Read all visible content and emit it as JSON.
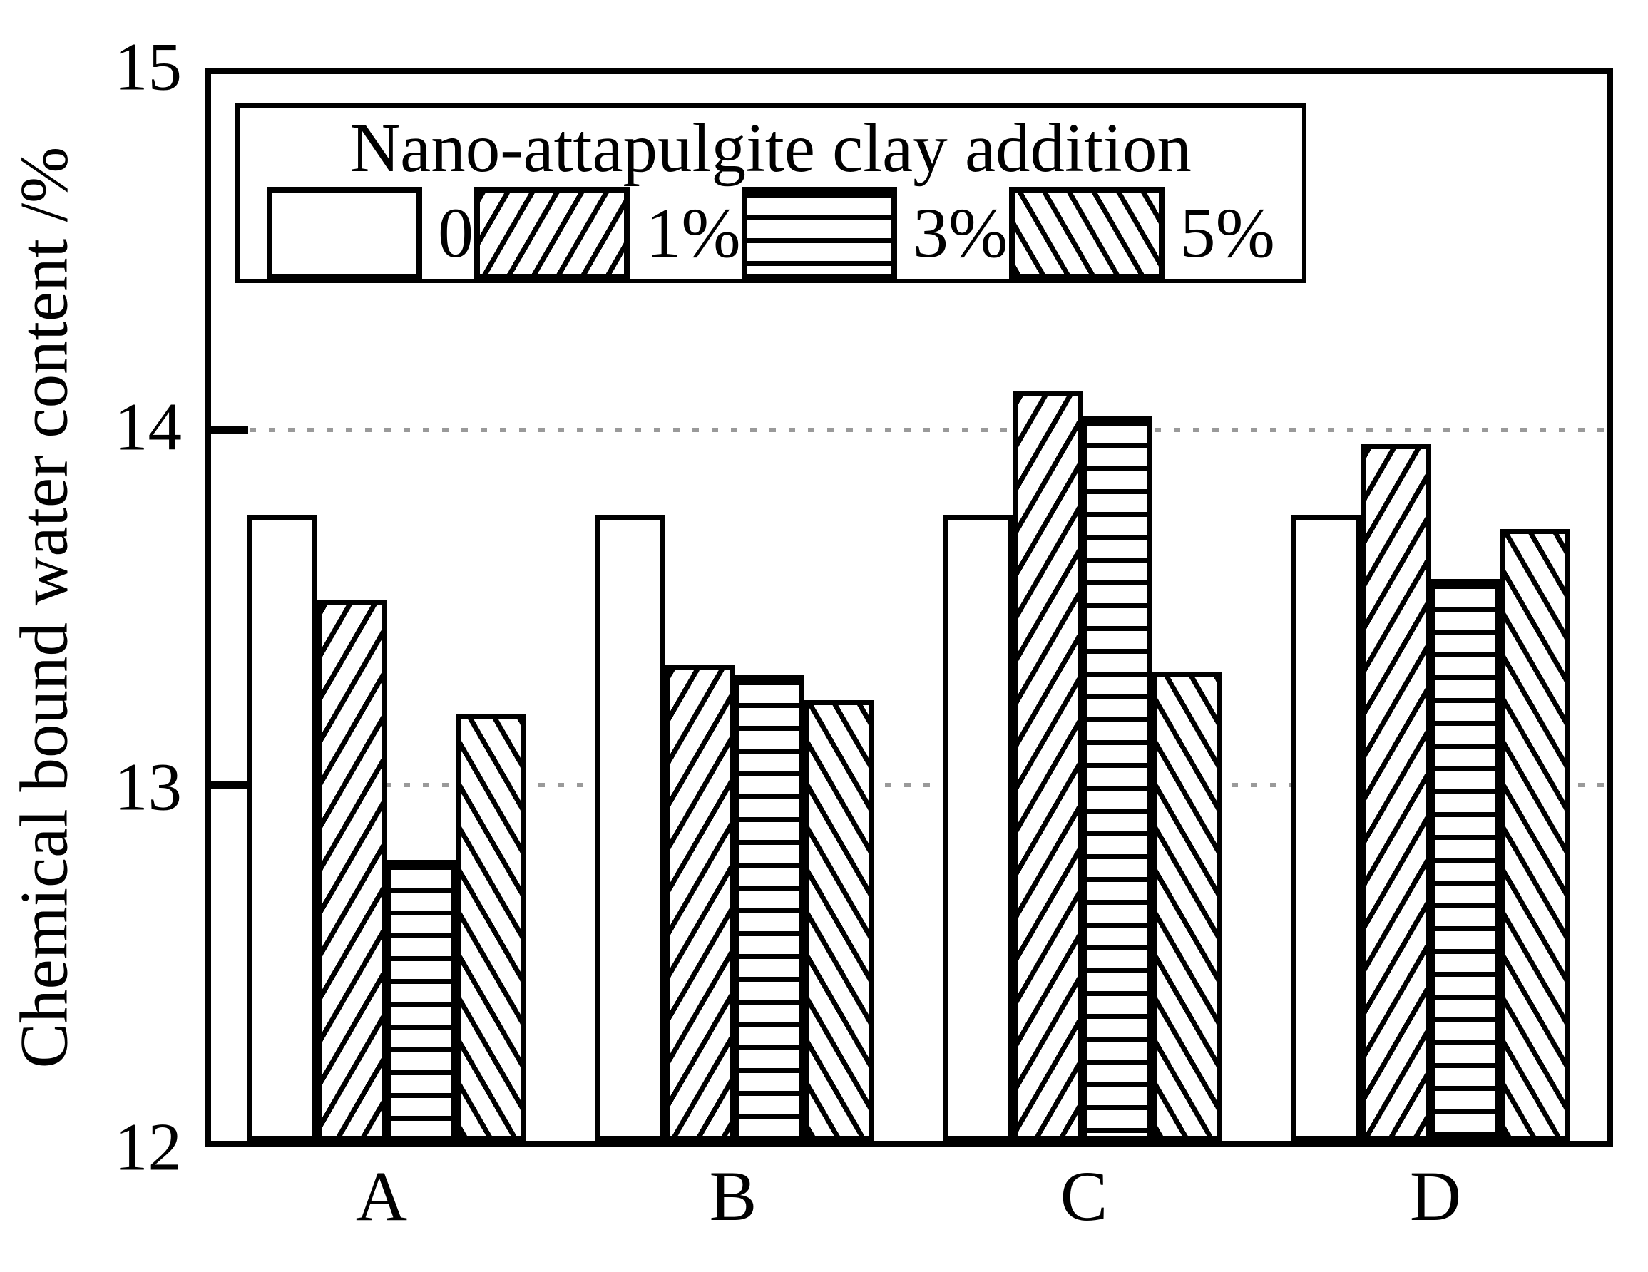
{
  "figure": {
    "background": "#ffffff",
    "line_color": "#000000",
    "gridline_color": "#9a9a9a"
  },
  "y_axis": {
    "title": "Chemical bound water content /%",
    "ticks": [
      "15",
      "14",
      "13",
      "12"
    ],
    "min": 12,
    "max": 15,
    "gridlines_at": [
      14,
      13
    ],
    "gridline_style": "dotted"
  },
  "x_axis": {
    "categories": [
      "A",
      "B",
      "C",
      "D"
    ]
  },
  "legend": {
    "title": "Nano-attapulgite clay addition",
    "items": [
      {
        "label": "0",
        "pattern": "plain"
      },
      {
        "label": "1%",
        "pattern": "diagonal-up-hatch"
      },
      {
        "label": "3%",
        "pattern": "horizontal-hatch"
      },
      {
        "label": "5%",
        "pattern": "diagonal-down-hatch"
      }
    ]
  },
  "chart_data": {
    "type": "bar",
    "title": "",
    "categories": [
      "A",
      "B",
      "C",
      "D"
    ],
    "series": [
      {
        "name": "0",
        "values": [
          13.76,
          13.76,
          13.76,
          13.76
        ]
      },
      {
        "name": "1%",
        "values": [
          13.52,
          13.34,
          14.11,
          13.96
        ]
      },
      {
        "name": "3%",
        "values": [
          12.79,
          13.31,
          14.04,
          13.58
        ]
      },
      {
        "name": "5%",
        "values": [
          13.2,
          13.24,
          13.32,
          13.72
        ]
      }
    ],
    "xlabel": "",
    "ylabel": "Chemical bound water content /%",
    "ylim": [
      12,
      15
    ],
    "grid": "horizontal dotted lines at y=13 and y=14",
    "legend_title": "Nano-attapulgite clay addition",
    "legend_position": "top-left inside plot",
    "bar_fill": "white with black hatch patterns: none, /, horizontal, \\"
  }
}
